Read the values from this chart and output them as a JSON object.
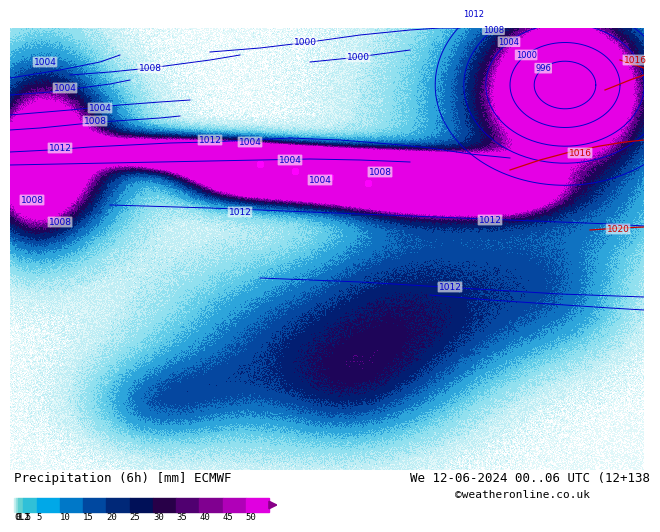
{
  "title_left": "Precipitation (6h) [mm] ECMWF",
  "title_right": "We 12-06-2024 00..06 UTC (12+138",
  "credit": "©weatheronline.co.uk",
  "colorbar_labels": [
    "0.1",
    "0.5",
    "1",
    "2",
    "5",
    "10",
    "15",
    "20",
    "25",
    "30",
    "35",
    "40",
    "45",
    "50"
  ],
  "colorbar_colors": [
    "#c8f0f0",
    "#96e0e0",
    "#60d0d0",
    "#30c0d8",
    "#00a8e8",
    "#0078c8",
    "#0048a0",
    "#002878",
    "#001058",
    "#280048",
    "#500070",
    "#800090",
    "#b000b8",
    "#e000e0"
  ],
  "bg_color": "#ffffff",
  "map_bg_ocean": "#f0f4f8",
  "map_bg_land_green": "#c8e0a0",
  "map_bg_land_gray": "#d8d0c8",
  "font_size_title": 9,
  "font_size_labels": 7,
  "font_size_credit": 8,
  "isobar_color_blue": "#0000cc",
  "isobar_color_red": "#cc0000",
  "precip_light": "#b0e8f8",
  "precip_medium": "#60b8e8",
  "precip_dark": "#1060c0",
  "precip_darkest": "#001858",
  "precip_magenta": "#dd00dd"
}
